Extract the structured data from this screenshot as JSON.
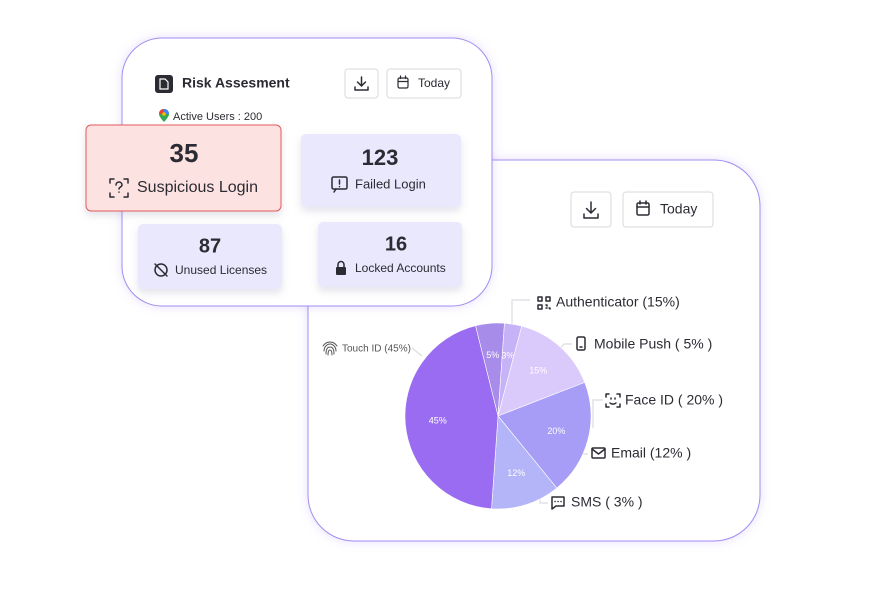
{
  "risk_card": {
    "title": "Risk Assesment",
    "active_users": "Active Users : 200",
    "date_button": "Today",
    "stats": [
      {
        "value": 35,
        "label": "Suspicious Login"
      },
      {
        "value": 123,
        "label": "Failed Login"
      },
      {
        "value": 87,
        "label": "Unused Licenses"
      },
      {
        "value": 16,
        "label": "Locked Accounts"
      }
    ]
  },
  "method_card": {
    "date_button": "Today",
    "callouts": [
      "Authenticator  (15%)",
      "Mobile Push ( 5% )",
      "Face ID ( 20% )",
      "Email (12% )",
      "SMS ( 3% )",
      "Touch ID (45%)"
    ]
  },
  "chart_data": {
    "type": "pie",
    "values": [
      5,
      3,
      15,
      20,
      12,
      45
    ],
    "value_labels": [
      "5%",
      "3%",
      "15%",
      "20%",
      "12%",
      "45%"
    ],
    "colors": [
      "#a78cea",
      "#c6b2f6",
      "#dac9fb",
      "#a79cf6",
      "#b3b5f8",
      "#9a6cf2"
    ]
  }
}
